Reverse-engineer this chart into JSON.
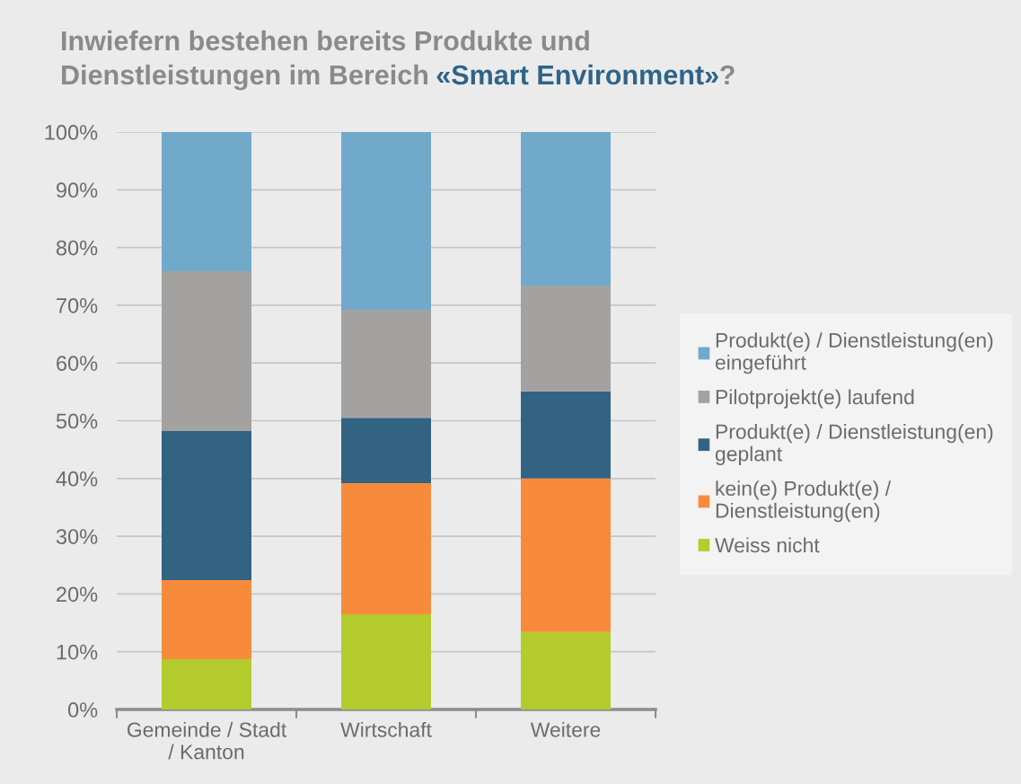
{
  "chart_data": {
    "type": "bar",
    "stacked": true,
    "title": "Inwiefern bestehen bereits Produkte und\nDienstleistungen im Bereich «Smart Environment»?",
    "categories": [
      "Gemeinde / Stadt\n/ Kanton",
      "Wirtschaft",
      "Weitere"
    ],
    "series": [
      {
        "name": "Weiss nicht",
        "color": "#b3cb2d",
        "values": [
          8.7,
          16.5,
          13.4
        ]
      },
      {
        "name": "kein(e) Produkt(e) /\nDienstleistung(en)",
        "color": "#f78b3b",
        "values": [
          13.7,
          22.7,
          26.6
        ]
      },
      {
        "name": "Produkt(e) / Dienstleistung(en)\ngeplant",
        "color": "#336383",
        "values": [
          25.9,
          11.3,
          15.1
        ]
      },
      {
        "name": "Pilotprojekt(e) laufend",
        "color": "#a3a2a0",
        "values": [
          27.6,
          18.7,
          18.3
        ]
      },
      {
        "name": "Produkt(e) / Dienstleistung(en)\neingeführt",
        "color": "#71a9cb",
        "values": [
          24.1,
          30.8,
          26.6
        ]
      }
    ],
    "ylim": [
      0,
      100
    ],
    "yticks": [
      {
        "value": 0,
        "label": "0%"
      },
      {
        "value": 10,
        "label": "10%"
      },
      {
        "value": 20,
        "label": "20%"
      },
      {
        "value": 30,
        "label": "30%"
      },
      {
        "value": 40,
        "label": "40%"
      },
      {
        "value": 50,
        "label": "50%"
      },
      {
        "value": 60,
        "label": "60%"
      },
      {
        "value": 70,
        "label": "70%"
      },
      {
        "value": 80,
        "label": "80%"
      },
      {
        "value": 90,
        "label": "90%"
      },
      {
        "value": 100,
        "label": "100%"
      }
    ],
    "grid": "y",
    "legend": "right"
  }
}
